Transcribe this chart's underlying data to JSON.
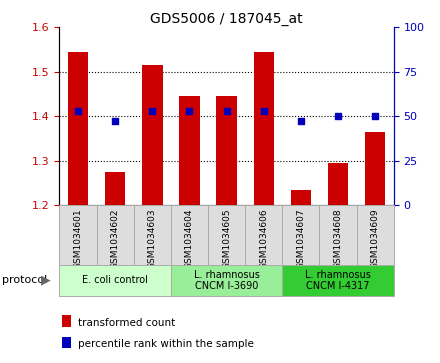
{
  "title": "GDS5006 / 187045_at",
  "samples": [
    "GSM1034601",
    "GSM1034602",
    "GSM1034603",
    "GSM1034604",
    "GSM1034605",
    "GSM1034606",
    "GSM1034607",
    "GSM1034608",
    "GSM1034609"
  ],
  "bar_values": [
    1.545,
    1.275,
    1.515,
    1.445,
    1.445,
    1.545,
    1.235,
    1.295,
    1.365
  ],
  "dot_values": [
    53,
    47,
    53,
    53,
    53,
    53,
    47,
    50,
    50
  ],
  "bar_color": "#cc0000",
  "dot_color": "#0000bb",
  "ylim_left": [
    1.2,
    1.6
  ],
  "ylim_right": [
    0,
    100
  ],
  "yticks_left": [
    1.2,
    1.3,
    1.4,
    1.5,
    1.6
  ],
  "yticks_right": [
    0,
    25,
    50,
    75,
    100
  ],
  "grid_values": [
    1.3,
    1.4,
    1.5
  ],
  "protocols": [
    {
      "label": "E. coli control",
      "span": [
        0,
        3
      ],
      "color": "#ccffcc"
    },
    {
      "label": "L. rhamnosus\nCNCM I-3690",
      "span": [
        3,
        6
      ],
      "color": "#99ee99"
    },
    {
      "label": "L. rhamnosus\nCNCM I-4317",
      "span": [
        6,
        9
      ],
      "color": "#33cc33"
    }
  ],
  "legend_bar_label": "transformed count",
  "legend_dot_label": "percentile rank within the sample",
  "protocol_label": "protocol",
  "tick_label_color_left": "#cc0000",
  "tick_label_color_right": "#0000bb",
  "cell_bg_color": "#dddddd",
  "cell_edge_color": "#aaaaaa"
}
